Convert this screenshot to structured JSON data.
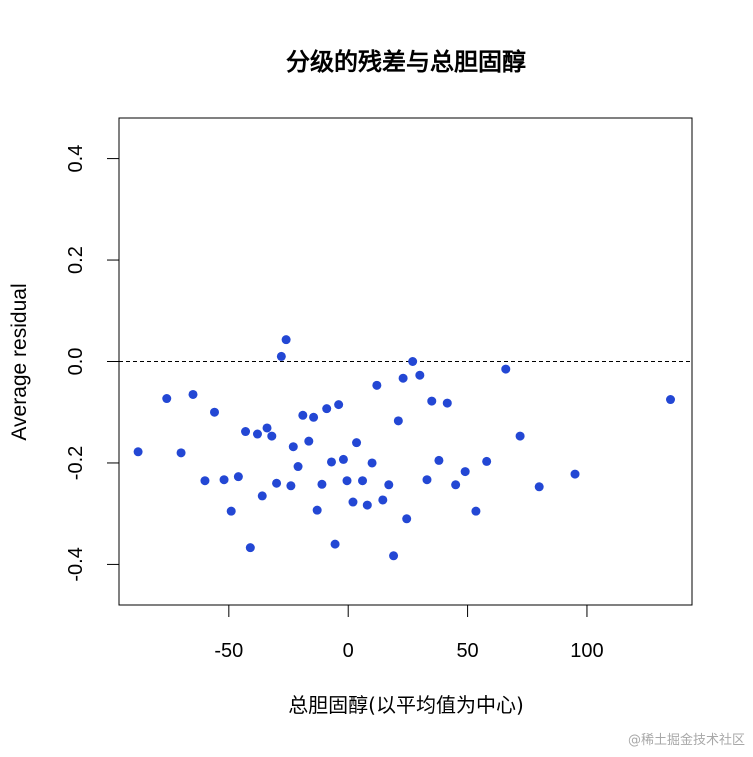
{
  "chart_data": {
    "type": "scatter",
    "title": "分级的残差与总胆固醇",
    "xlabel": "总胆固醇(以平均值为中心)",
    "ylabel": "Average residual",
    "xlim": [
      -96,
      144
    ],
    "ylim": [
      -0.48,
      0.48
    ],
    "xticks": [
      -50,
      0,
      50,
      100
    ],
    "xtick_labels": [
      "-50",
      "0",
      "50",
      "100"
    ],
    "yticks": [
      -0.4,
      -0.2,
      0.0,
      0.2,
      0.4
    ],
    "ytick_labels": [
      "-0.4",
      "-0.2",
      "0.0",
      "0.2",
      "0.4"
    ],
    "reference_line": {
      "y": 0,
      "style": "dashed"
    },
    "grid": false,
    "point_color": "#2347d4",
    "points": [
      {
        "x": -88,
        "y": -0.178
      },
      {
        "x": -76,
        "y": -0.073
      },
      {
        "x": -70,
        "y": -0.18
      },
      {
        "x": -65,
        "y": -0.065
      },
      {
        "x": -60,
        "y": -0.235
      },
      {
        "x": -56,
        "y": -0.1
      },
      {
        "x": -52,
        "y": -0.233
      },
      {
        "x": -49,
        "y": -0.295
      },
      {
        "x": -46,
        "y": -0.227
      },
      {
        "x": -43,
        "y": -0.138
      },
      {
        "x": -41,
        "y": -0.367
      },
      {
        "x": -38,
        "y": -0.143
      },
      {
        "x": -36,
        "y": -0.265
      },
      {
        "x": -34,
        "y": -0.131
      },
      {
        "x": -32,
        "y": -0.147
      },
      {
        "x": -30,
        "y": -0.24
      },
      {
        "x": -28,
        "y": 0.01
      },
      {
        "x": -26,
        "y": 0.043
      },
      {
        "x": -24,
        "y": -0.245
      },
      {
        "x": -23,
        "y": -0.168
      },
      {
        "x": -21,
        "y": -0.207
      },
      {
        "x": -19,
        "y": -0.106
      },
      {
        "x": -16.5,
        "y": -0.157
      },
      {
        "x": -14.5,
        "y": -0.11
      },
      {
        "x": -13,
        "y": -0.293
      },
      {
        "x": -11,
        "y": -0.242
      },
      {
        "x": -9,
        "y": -0.093
      },
      {
        "x": -7,
        "y": -0.198
      },
      {
        "x": -5.5,
        "y": -0.36
      },
      {
        "x": -4,
        "y": -0.085
      },
      {
        "x": -2,
        "y": -0.193
      },
      {
        "x": -0.5,
        "y": -0.235
      },
      {
        "x": 2,
        "y": -0.277
      },
      {
        "x": 3.5,
        "y": -0.16
      },
      {
        "x": 6,
        "y": -0.235
      },
      {
        "x": 8,
        "y": -0.283
      },
      {
        "x": 10,
        "y": -0.2
      },
      {
        "x": 12,
        "y": -0.047
      },
      {
        "x": 14.5,
        "y": -0.273
      },
      {
        "x": 17,
        "y": -0.243
      },
      {
        "x": 19,
        "y": -0.383
      },
      {
        "x": 21,
        "y": -0.117
      },
      {
        "x": 23,
        "y": -0.033
      },
      {
        "x": 24.5,
        "y": -0.31
      },
      {
        "x": 27,
        "y": 0.0
      },
      {
        "x": 30,
        "y": -0.027
      },
      {
        "x": 33,
        "y": -0.233
      },
      {
        "x": 35,
        "y": -0.078
      },
      {
        "x": 38,
        "y": -0.195
      },
      {
        "x": 41.5,
        "y": -0.082
      },
      {
        "x": 45,
        "y": -0.243
      },
      {
        "x": 49,
        "y": -0.217
      },
      {
        "x": 53.5,
        "y": -0.295
      },
      {
        "x": 58,
        "y": -0.197
      },
      {
        "x": 66,
        "y": -0.015
      },
      {
        "x": 72,
        "y": -0.147
      },
      {
        "x": 80,
        "y": -0.247
      },
      {
        "x": 95,
        "y": -0.222
      },
      {
        "x": 135,
        "y": -0.075
      }
    ]
  },
  "watermark": "@稀土掘金技术社区"
}
